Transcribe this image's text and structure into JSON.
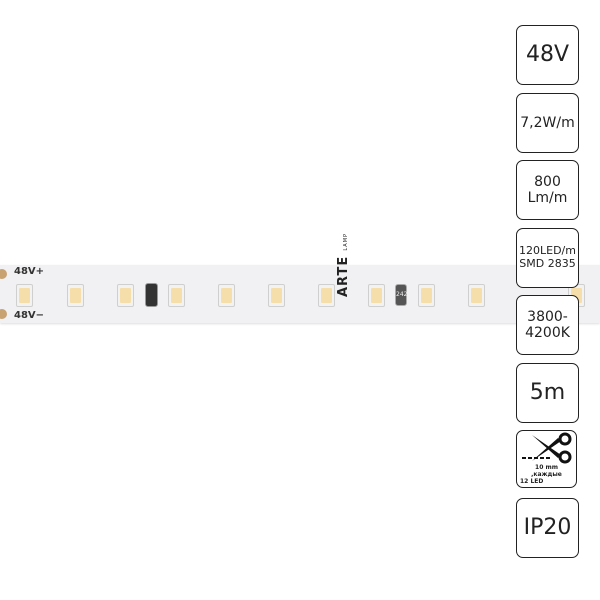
{
  "strip": {
    "brand": "ARTE",
    "brand_sub": "LAMP",
    "plus_label": "48V+",
    "minus_label": "48V−",
    "resistor_code": "242"
  },
  "specs": {
    "voltage": "48V",
    "power": "7,2W/m",
    "flux_value": "800",
    "flux_unit": "Lm/m",
    "density": "120LED/m",
    "chip": "SMD 2835",
    "cct_line1": "3800-",
    "cct_line2": "4200K",
    "length": "5m",
    "cut_line1": "10 mm ,каждые",
    "cut_line2": "12 LED",
    "ip": "IP20"
  }
}
